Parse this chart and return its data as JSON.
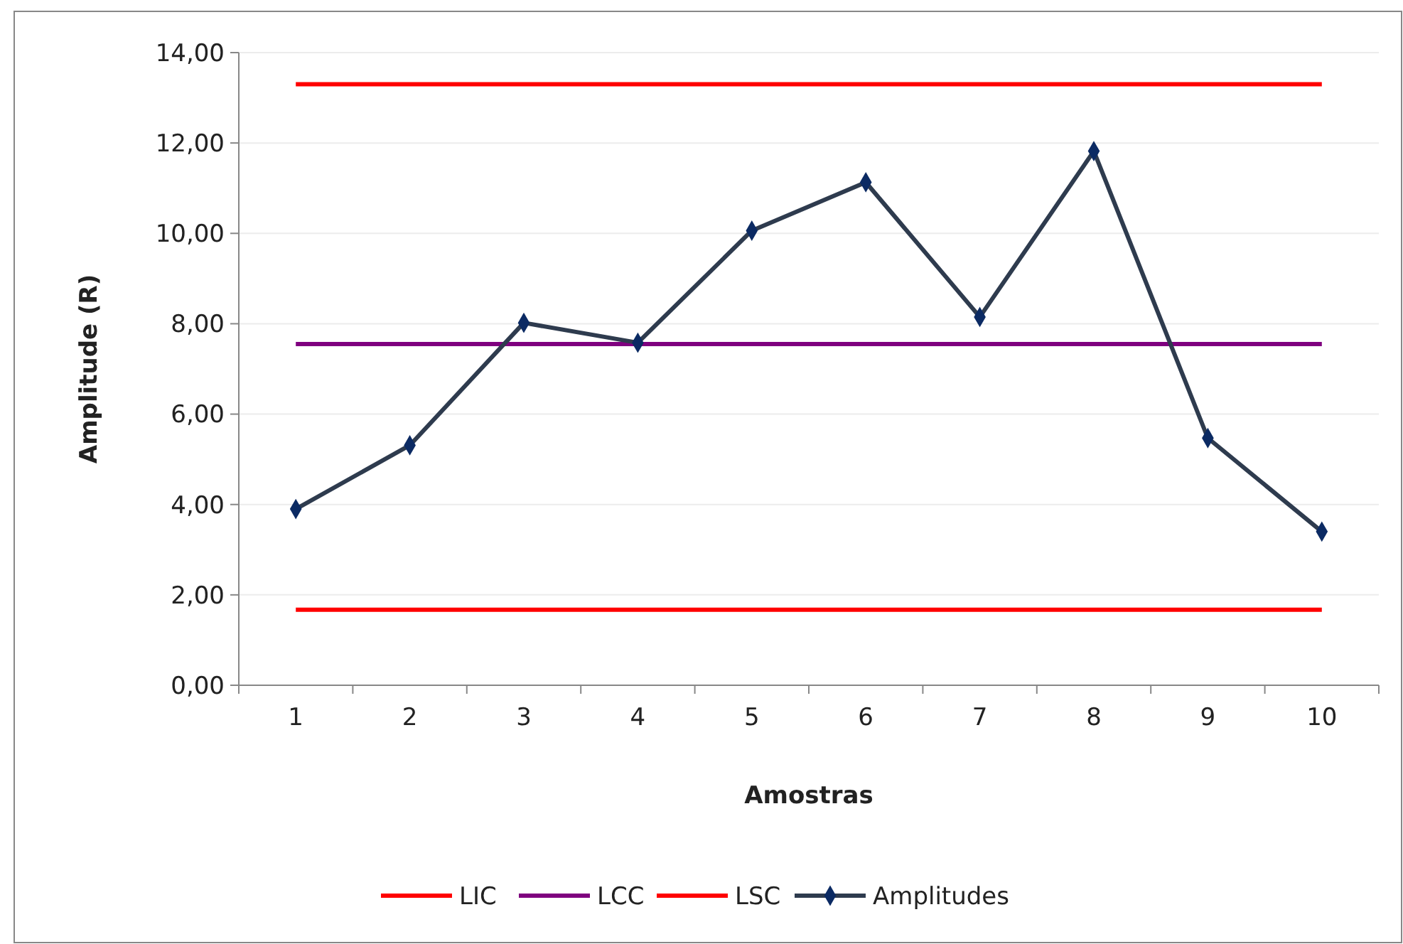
{
  "chart_data": {
    "type": "line",
    "xlabel": "Amostras",
    "ylabel": "Amplitude (R)",
    "categories": [
      "1",
      "2",
      "3",
      "4",
      "5",
      "6",
      "7",
      "8",
      "9",
      "10"
    ],
    "series": [
      {
        "name": "LIC",
        "color": "#ff0000",
        "marker": "none",
        "values": [
          1.67,
          1.67,
          1.67,
          1.67,
          1.67,
          1.67,
          1.67,
          1.67,
          1.67,
          1.67
        ]
      },
      {
        "name": "LCC",
        "color": "#7f007f",
        "marker": "none",
        "values": [
          7.55,
          7.55,
          7.55,
          7.55,
          7.55,
          7.55,
          7.55,
          7.55,
          7.55,
          7.55
        ]
      },
      {
        "name": "LSC",
        "color": "#ff0000",
        "marker": "none",
        "values": [
          13.3,
          13.3,
          13.3,
          13.3,
          13.3,
          13.3,
          13.3,
          13.3,
          13.3,
          13.3
        ]
      },
      {
        "name": "Amplitudes",
        "color": "#2e3b4e",
        "marker": "diamond",
        "values": [
          3.9,
          5.31,
          8.02,
          7.58,
          10.06,
          11.13,
          8.15,
          11.82,
          5.47,
          3.4
        ]
      }
    ],
    "ylim": [
      0,
      14
    ],
    "yticks": [
      {
        "value": 0,
        "label": "0,00"
      },
      {
        "value": 2,
        "label": "2,00"
      },
      {
        "value": 4,
        "label": "4,00"
      },
      {
        "value": 6,
        "label": "6,00"
      },
      {
        "value": 8,
        "label": "8,00"
      },
      {
        "value": 10,
        "label": "10,00"
      },
      {
        "value": 12,
        "label": "12,00"
      },
      {
        "value": 14,
        "label": "14,00"
      }
    ],
    "grid": "y",
    "legend": "bottom"
  }
}
